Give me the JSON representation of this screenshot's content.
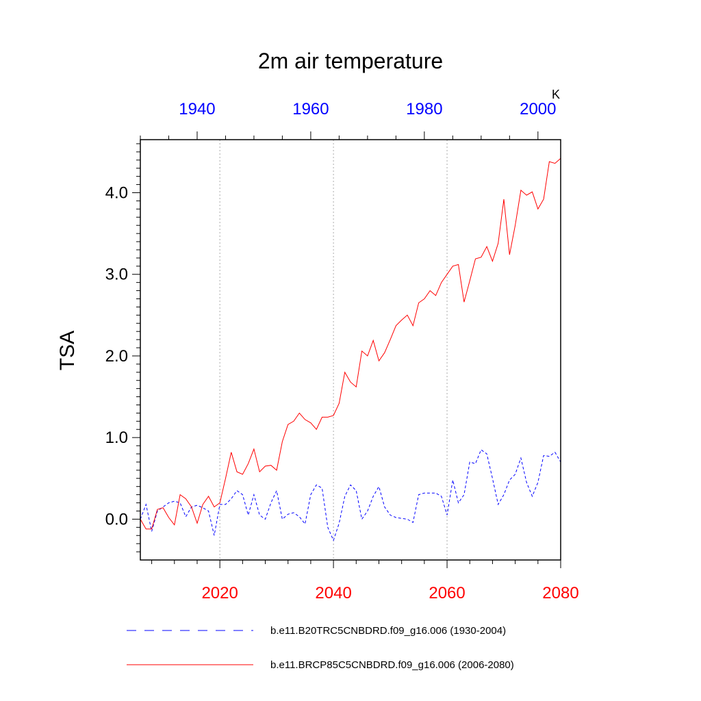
{
  "chart_data": {
    "type": "line",
    "title": "2m air temperature",
    "ylabel": "TSA",
    "units": "K",
    "ylim": [
      -0.5,
      4.65
    ],
    "yticks": [
      0.0,
      1.0,
      2.0,
      3.0,
      4.0
    ],
    "ytick_labels": [
      "0.0",
      "1.0",
      "2.0",
      "3.0",
      "4.0"
    ],
    "grid": "vertical dotted lines at major bottom ticks",
    "legend_position": "bottom",
    "x_bottom": {
      "range": [
        2006,
        2080
      ],
      "ticks": [
        2020,
        2040,
        2060,
        2080
      ],
      "tick_labels": [
        "2020",
        "2040",
        "2060",
        "2080"
      ],
      "color": "#ff0000"
    },
    "x_top": {
      "range": [
        1930,
        2004
      ],
      "ticks": [
        1940,
        1960,
        1980,
        2000
      ],
      "tick_labels": [
        "1940",
        "1960",
        "1980",
        "2000"
      ],
      "color": "#0000ff"
    },
    "series": [
      {
        "name": "b.e11.B20TRC5CNBDRD.f09_g16.006 (1930-2004)",
        "axis": "top",
        "color": "#0000ff",
        "dash": "dashed",
        "x_start": 1930,
        "values": [
          0.0,
          0.18,
          -0.15,
          0.1,
          0.15,
          0.2,
          0.22,
          0.2,
          0.03,
          0.15,
          0.17,
          0.14,
          0.1,
          -0.2,
          0.18,
          0.18,
          0.25,
          0.35,
          0.3,
          0.05,
          0.3,
          0.05,
          0.0,
          0.2,
          0.35,
          0.0,
          0.06,
          0.08,
          0.03,
          -0.06,
          0.3,
          0.42,
          0.38,
          -0.1,
          -0.26,
          -0.05,
          0.28,
          0.42,
          0.35,
          0.0,
          0.1,
          0.28,
          0.4,
          0.15,
          0.05,
          0.02,
          0.01,
          0.0,
          -0.04,
          0.3,
          0.32,
          0.32,
          0.32,
          0.28,
          0.05,
          0.48,
          0.2,
          0.3,
          0.7,
          0.68,
          0.85,
          0.8,
          0.5,
          0.18,
          0.3,
          0.48,
          0.55,
          0.75,
          0.45,
          0.28,
          0.45,
          0.78,
          0.77,
          0.82,
          0.7
        ]
      },
      {
        "name": "b.e11.BRCP85C5CNBDRD.f09_g16.006 (2006-2080)",
        "axis": "bottom",
        "color": "#ff0000",
        "dash": "solid",
        "x_start": 2006,
        "values": [
          0.0,
          -0.12,
          -0.12,
          0.12,
          0.14,
          0.02,
          -0.07,
          0.3,
          0.25,
          0.15,
          -0.05,
          0.18,
          0.28,
          0.15,
          0.2,
          0.5,
          0.82,
          0.58,
          0.55,
          0.68,
          0.86,
          0.58,
          0.65,
          0.66,
          0.6,
          0.95,
          1.16,
          1.2,
          1.3,
          1.22,
          1.18,
          1.1,
          1.25,
          1.25,
          1.27,
          1.42,
          1.8,
          1.68,
          1.62,
          2.06,
          2.0,
          2.19,
          1.94,
          2.04,
          2.2,
          2.37,
          2.44,
          2.5,
          2.37,
          2.65,
          2.7,
          2.8,
          2.74,
          2.9,
          3.0,
          3.1,
          3.12,
          2.66,
          2.92,
          3.19,
          3.21,
          3.34,
          3.16,
          3.38,
          3.92,
          3.24,
          3.6,
          4.03,
          3.97,
          4.01,
          3.8,
          3.92,
          4.38,
          4.36,
          4.42
        ]
      }
    ]
  }
}
